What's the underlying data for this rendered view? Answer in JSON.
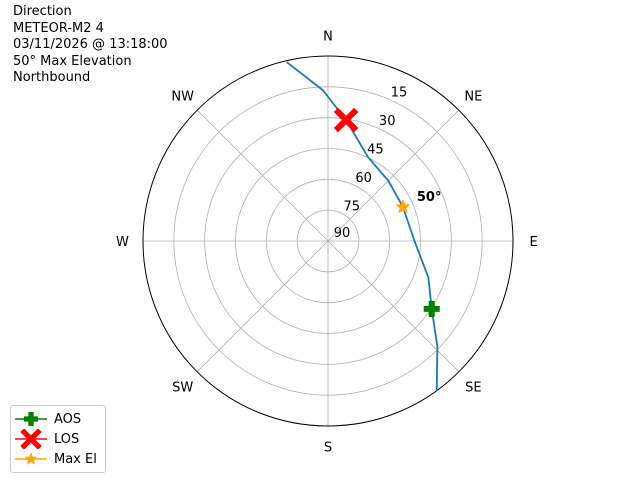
{
  "chart_data": {
    "type": "line",
    "projection": "polar",
    "title_lines": [
      "Direction",
      "METEOR-M2 4",
      "03/11/2026 @ 13:18:00",
      "50° Max Elevation",
      "Northbound"
    ],
    "theta_direction": "clockwise",
    "theta_zero": "N",
    "theta_tick_labels": [
      "N",
      "NE",
      "E",
      "SE",
      "S",
      "SW",
      "W",
      "NW"
    ],
    "r_axis": "elevation (degrees), 90 at center, 0 at edge",
    "r_tick_labels": [
      "15",
      "30",
      "45",
      "60",
      "75",
      "90"
    ],
    "rlim": [
      90,
      0
    ],
    "grid": true,
    "track": {
      "color": "#1f77b4",
      "points": [
        {
          "az": 347,
          "el": 0.7
        },
        {
          "az": 358,
          "el": 16.5
        },
        {
          "az": 8.5,
          "el": 30.5
        },
        {
          "az": 25.5,
          "el": 44.8
        },
        {
          "az": 45,
          "el": 48.5
        },
        {
          "az": 65.6,
          "el": 50
        },
        {
          "az": 90.7,
          "el": 47.7
        },
        {
          "az": 110,
          "el": 38
        },
        {
          "az": 123.2,
          "el": 29.7
        },
        {
          "az": 134,
          "el": 16
        },
        {
          "az": 144,
          "el": 0
        }
      ]
    },
    "markers": [
      {
        "name": "AOS",
        "az": 123.2,
        "el": 29.7,
        "color": "#008000",
        "shape": "plus-filled"
      },
      {
        "name": "LOS",
        "az": 8.5,
        "el": 30.5,
        "color": "#ff0000",
        "shape": "x-filled"
      },
      {
        "name": "Max El",
        "az": 65.6,
        "el": 50,
        "color": "#ffa500",
        "shape": "star"
      }
    ],
    "annotation": {
      "text": "50°",
      "az": 65.6,
      "el": 50,
      "bold": true
    },
    "legend_placement": "bottom-left"
  }
}
